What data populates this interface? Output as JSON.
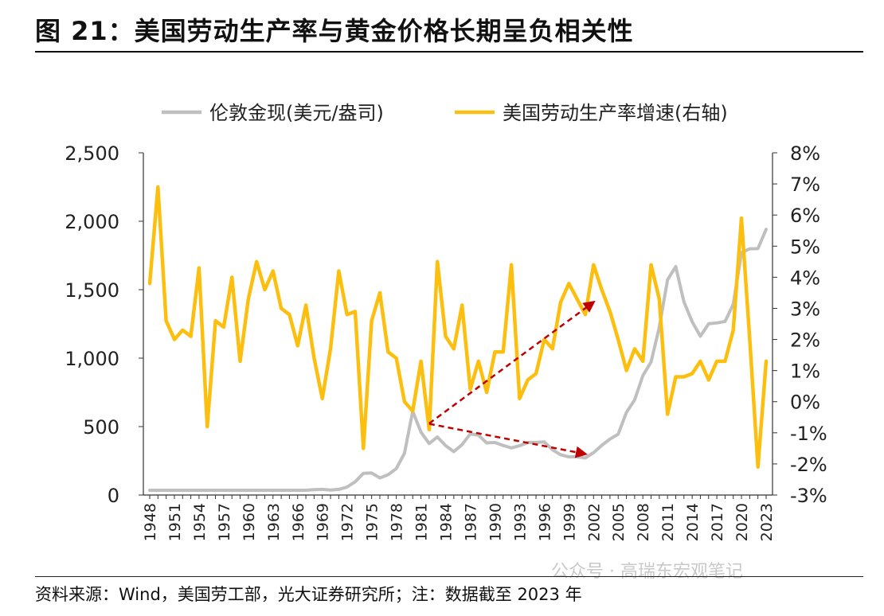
{
  "title": "图 21：美国劳动生产率与黄金价格长期呈负相关性",
  "source": "资料来源：Wind，美国劳工部，光大证券研究所；注：数据截至 2023 年",
  "watermark": "公众号 · 高瑞东宏观笔记",
  "chart_data": {
    "type": "line",
    "x": [
      1948,
      1949,
      1950,
      1951,
      1952,
      1953,
      1954,
      1955,
      1956,
      1957,
      1958,
      1959,
      1960,
      1961,
      1962,
      1963,
      1964,
      1965,
      1966,
      1967,
      1968,
      1969,
      1970,
      1971,
      1972,
      1973,
      1974,
      1975,
      1976,
      1977,
      1978,
      1979,
      1980,
      1981,
      1982,
      1983,
      1984,
      1985,
      1986,
      1987,
      1988,
      1989,
      1990,
      1991,
      1992,
      1993,
      1994,
      1995,
      1996,
      1997,
      1998,
      1999,
      2000,
      2001,
      2002,
      2003,
      2004,
      2005,
      2006,
      2007,
      2008,
      2009,
      2010,
      2011,
      2012,
      2013,
      2014,
      2015,
      2016,
      2017,
      2018,
      2019,
      2020,
      2021,
      2022,
      2023
    ],
    "x_ticks": [
      "1948",
      "1951",
      "1954",
      "1957",
      "1960",
      "1963",
      "1966",
      "1969",
      "1972",
      "1975",
      "1978",
      "1981",
      "1984",
      "1987",
      "1990",
      "1993",
      "1996",
      "1999",
      "2002",
      "2005",
      "2008",
      "2011",
      "2014",
      "2017",
      "2020",
      "2023"
    ],
    "series": [
      {
        "name": "伦敦金现(美元/盎司)",
        "axis": "left",
        "color": "#bfbfbf",
        "values": [
          35,
          35,
          35,
          35,
          35,
          35,
          35,
          35,
          35,
          35,
          35,
          35,
          35,
          35,
          35,
          35,
          35,
          35,
          35,
          35,
          39,
          41,
          36,
          41,
          58,
          97,
          159,
          161,
          125,
          148,
          193,
          306,
          612,
          460,
          376,
          424,
          361,
          317,
          368,
          447,
          437,
          381,
          384,
          362,
          344,
          360,
          384,
          384,
          388,
          331,
          294,
          279,
          279,
          271,
          310,
          363,
          409,
          444,
          604,
          695,
          872,
          972,
          1225,
          1572,
          1669,
          1411,
          1266,
          1160,
          1251,
          1257,
          1268,
          1393,
          1770,
          1799,
          1800,
          1941
        ]
      },
      {
        "name": "美国劳动生产率增速(右轴)",
        "axis": "right",
        "color": "#fcbf10",
        "values": [
          3.8,
          6.9,
          2.6,
          2.0,
          2.3,
          2.1,
          4.3,
          -0.8,
          2.6,
          2.4,
          4.0,
          1.3,
          3.3,
          4.5,
          3.6,
          4.2,
          3.0,
          2.8,
          1.8,
          3.1,
          1.4,
          0.1,
          1.7,
          4.2,
          2.8,
          2.9,
          -1.5,
          2.6,
          3.5,
          1.6,
          1.4,
          0.0,
          -0.3,
          1.3,
          -0.9,
          4.5,
          2.1,
          1.7,
          3.1,
          0.4,
          1.3,
          0.3,
          1.6,
          1.6,
          4.4,
          0.1,
          0.7,
          0.9,
          2.0,
          1.7,
          3.2,
          3.8,
          3.3,
          2.8,
          4.4,
          3.6,
          2.9,
          2.0,
          1.0,
          1.7,
          1.3,
          4.4,
          3.3,
          -0.4,
          0.8,
          0.8,
          0.9,
          1.3,
          0.7,
          1.3,
          1.3,
          2.3,
          5.9,
          2.0,
          -2.1,
          1.3
        ]
      }
    ],
    "y_left": {
      "min": 0,
      "max": 2500,
      "ticks": [
        "0",
        "500",
        "1,000",
        "1,500",
        "2,000",
        "2,500"
      ]
    },
    "y_right": {
      "min": -3,
      "max": 8,
      "ticks": [
        "-3%",
        "-2%",
        "-1%",
        "0%",
        "1%",
        "2%",
        "3%",
        "4%",
        "5%",
        "6%",
        "7%",
        "8%"
      ]
    },
    "legend": {
      "position": "top",
      "items": [
        "伦敦金现(美元/盎司)",
        "美国劳动生产率增速(右轴)"
      ]
    },
    "annotations": [
      {
        "type": "arrow",
        "color": "#c00000",
        "from": {
          "x": 1982,
          "axis": "right",
          "y": -0.7
        },
        "to": {
          "x": 2002,
          "axis": "right",
          "y": 3.2
        }
      },
      {
        "type": "arrow",
        "color": "#c00000",
        "from": {
          "x": 1982,
          "axis": "left",
          "y": 520
        },
        "to": {
          "x": 2001,
          "axis": "left",
          "y": 300
        }
      }
    ]
  }
}
